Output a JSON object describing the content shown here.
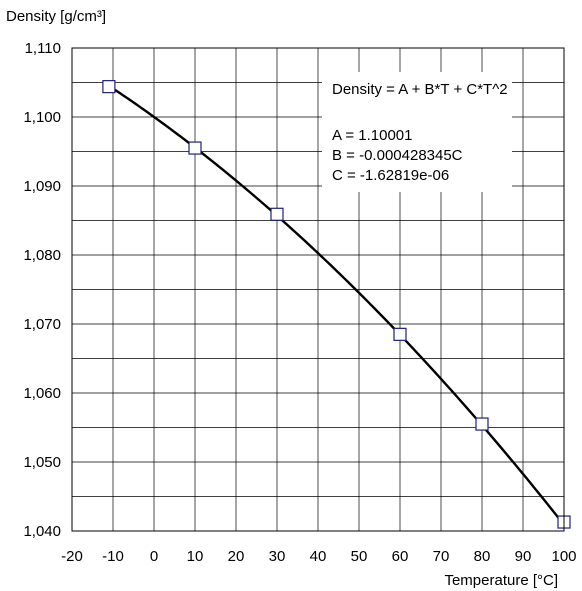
{
  "chart_data": {
    "type": "scatter",
    "title": "",
    "ylabel": "Density [g/cm³]",
    "xlabel": "Temperature [°C]",
    "xlim": [
      -20,
      100
    ],
    "ylim": [
      1.04,
      1.11
    ],
    "grid": true,
    "x_ticks": [
      "-20",
      "-10",
      "0",
      "10",
      "20",
      "30",
      "40",
      "50",
      "60",
      "70",
      "80",
      "90",
      "100"
    ],
    "y_ticks": [
      "1,040",
      "1,050",
      "1,060",
      "1,070",
      "1,080",
      "1,090",
      "1,100",
      "1,110"
    ],
    "series": [
      {
        "marker": "open-square",
        "color": "#1f1f7a",
        "points": [
          {
            "x": -11,
            "y": 1.1044
          },
          {
            "x": 10,
            "y": 1.0955
          },
          {
            "x": 30,
            "y": 1.0859
          },
          {
            "x": 60,
            "y": 1.0685
          },
          {
            "x": 80,
            "y": 1.0555
          },
          {
            "x": 100,
            "y": 1.0413
          }
        ]
      },
      {
        "style": "fit-line",
        "color": "#000000",
        "x_range": [
          -11,
          100
        ]
      }
    ],
    "annotation": {
      "placement": "top-right",
      "lines": [
        "Density = A + B*T + C*T^2",
        "",
        "A = 1.10001",
        "B = -0.000428345C",
        "C = -1.62819e-06"
      ]
    }
  }
}
